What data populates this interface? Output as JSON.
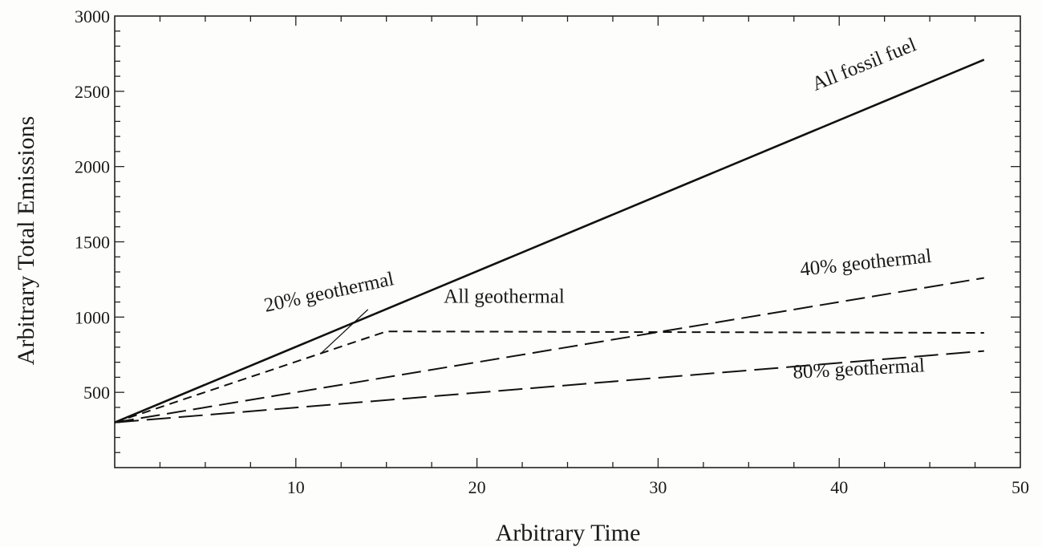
{
  "chart_data": {
    "type": "line",
    "title": "",
    "xlabel": "Arbitrary Time",
    "ylabel": "Arbitrary Total Emissions",
    "xlim": [
      0,
      50
    ],
    "ylim": [
      0,
      3000
    ],
    "x_ticks": [
      10,
      20,
      30,
      40,
      50
    ],
    "y_ticks": [
      500,
      1000,
      1500,
      2000,
      2500,
      3000
    ],
    "x_minor_step": 2.5,
    "y_minor_step": 100,
    "grid": false,
    "series": [
      {
        "name": "All fossil fuel",
        "style": "solid",
        "x": [
          0,
          48
        ],
        "y": [
          300,
          2710
        ]
      },
      {
        "name": "20% geothermal",
        "style": "dashed",
        "x": [
          0,
          15,
          48
        ],
        "y": [
          300,
          905,
          895
        ]
      },
      {
        "name": "40% geothermal",
        "style": "dashed",
        "x": [
          0,
          48
        ],
        "y": [
          300,
          1260
        ]
      },
      {
        "name": "80% geothermal",
        "style": "dashed",
        "x": [
          0,
          48
        ],
        "y": [
          300,
          775
        ]
      }
    ],
    "annotations": [
      {
        "text": "All fossil fuel",
        "x": 41.5,
        "y": 2640,
        "rotate": -22
      },
      {
        "text": "20% geothermal",
        "x": 11.9,
        "y": 1125,
        "rotate": -12,
        "arrow_to": [
          11.4,
          760
        ]
      },
      {
        "text": "All geothermal",
        "x": 21.5,
        "y": 1095,
        "rotate": 0
      },
      {
        "text": "40% geothermal",
        "x": 41.5,
        "y": 1320,
        "rotate": -6
      },
      {
        "text": "80% geothermal",
        "x": 41.1,
        "y": 615,
        "rotate": -3
      }
    ]
  }
}
